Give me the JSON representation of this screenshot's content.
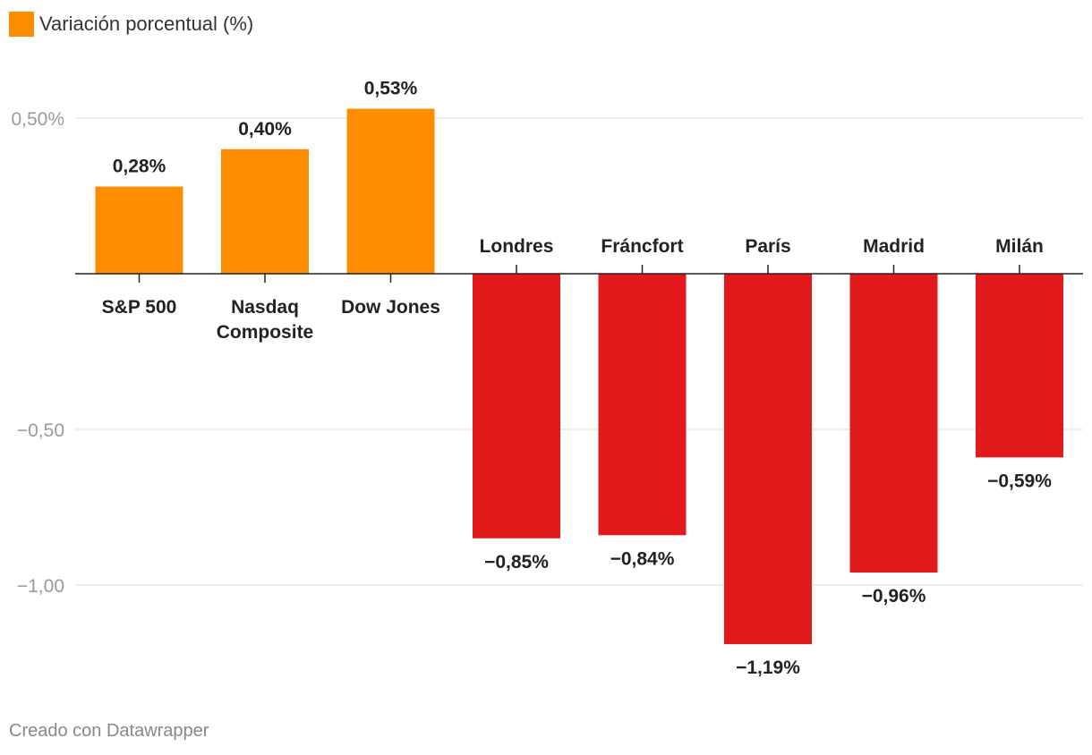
{
  "legend": {
    "label": "Variación porcentual (%)",
    "color": "#fc8d00"
  },
  "footer": {
    "credit": "Creado con Datawrapper"
  },
  "chart_data": {
    "type": "bar",
    "categories": [
      "S&P 500",
      "Nasdaq Composite",
      "Dow Jones",
      "Londres",
      "Fráncfort",
      "París",
      "Madrid",
      "Milán"
    ],
    "category_display": [
      [
        "S&P 500"
      ],
      [
        "Nasdaq",
        "Composite"
      ],
      [
        "Dow Jones"
      ],
      [
        "Londres"
      ],
      [
        "Fráncfort"
      ],
      [
        "París"
      ],
      [
        "Madrid"
      ],
      [
        "Milán"
      ]
    ],
    "series": [
      {
        "values": [
          0.28,
          0.4,
          0.53,
          -0.85,
          -0.84,
          -1.19,
          -0.96,
          -0.59
        ]
      }
    ],
    "value_labels": [
      "0,28%",
      "0,40%",
      "0,53%",
      "−0,85%",
      "−0,84%",
      "−1,19%",
      "−0,96%",
      "−0,59%"
    ],
    "positive_color": "#fc8d00",
    "negative_color": "#e31a1c",
    "yticks": [
      {
        "value": 0.5,
        "label": "0,50%"
      },
      {
        "value": -0.5,
        "label": "−0,50"
      },
      {
        "value": -1.0,
        "label": "−1,00"
      }
    ],
    "ylim": [
      -1.3,
      0.6
    ],
    "grid": true,
    "legend_position": "top-left",
    "title": "",
    "xlabel": "",
    "ylabel": ""
  }
}
